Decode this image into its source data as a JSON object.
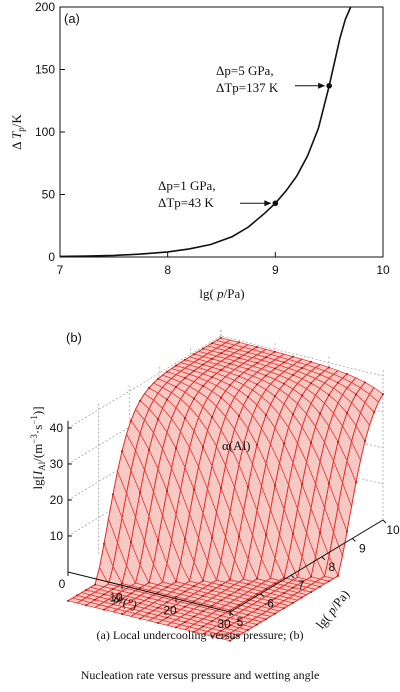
{
  "chart_data": [
    {
      "type": "line",
      "panel": "(a)",
      "ylabel": "Δ T_p /K",
      "xlabel": "lg( p /Pa)",
      "xlim": [
        7,
        10
      ],
      "ylim": [
        0,
        200
      ],
      "xticks": [
        "7",
        "8",
        "9",
        "10"
      ],
      "yticks": [
        "0",
        "50",
        "100",
        "150",
        "200"
      ],
      "series": [
        {
          "x": [
            7.0,
            7.25,
            7.5,
            7.75,
            8.0,
            8.2,
            8.4,
            8.6,
            8.75,
            8.9,
            9.0,
            9.1,
            9.2,
            9.3,
            9.4,
            9.5,
            9.6,
            9.65,
            9.7
          ],
          "y": [
            0.5,
            0.8,
            1.3,
            2.3,
            4.1,
            6.5,
            10.0,
            16.3,
            24.0,
            35.0,
            43.0,
            53.0,
            65.0,
            81.0,
            103.0,
            137.0,
            175.0,
            190.0,
            200.0
          ]
        }
      ],
      "annotations": [
        {
          "line1": "Δp=1 GPa,",
          "line2": "ΔTp=43 K",
          "x": 9.0,
          "y": 43
        },
        {
          "line1": "Δp=5 GPa,",
          "line2": "ΔTp=137 K",
          "x": 9.5,
          "y": 137
        }
      ]
    },
    {
      "type": "surface",
      "panel": "(b)",
      "zlabel": "lg[ I_Al /(m⁻³·s⁻¹)]",
      "xlabel": "θ/(°)",
      "ylabel": "lg( p /Pa)",
      "series_label": "α(Al)",
      "theta_ticks": [
        "0",
        "10",
        "20",
        "30"
      ],
      "p_ticks": [
        "5",
        "6",
        "7",
        "8",
        "9",
        "10"
      ],
      "z_ticks": [
        "10",
        "20",
        "30",
        "40"
      ],
      "theta_range": [
        0,
        30
      ],
      "p_range": [
        5,
        10
      ],
      "z_range": [
        0,
        40
      ]
    }
  ],
  "caption": {
    "line1": "(a)  Local undercooling versus pressure;  (b)",
    "line2": "Nucleation rate versus pressure and wetting angle"
  },
  "colors": {
    "surface": "#e8302a",
    "surface_dark": "#b01010",
    "line": "#111111"
  }
}
